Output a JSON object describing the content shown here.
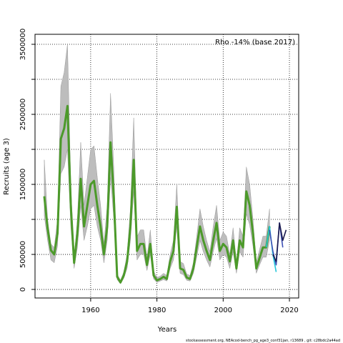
{
  "chart_data": {
    "type": "line",
    "annotation": "Rho -14% (base 2017)",
    "x_label": "Years",
    "y_label": "Recruits (age 3)",
    "footer": "stockassessment.org, NEAcod-bench_pg_age3_conf31jan, r13689 , git: c28bdc2a44ad",
    "xlim": [
      1943.2,
      2022.8
    ],
    "ylim": [
      -122000,
      3643000
    ],
    "xticks": [
      1960,
      1980,
      2000,
      2020
    ],
    "yticks": [
      0,
      500000,
      1500000,
      2500000,
      3500000
    ],
    "minor_yticks": [
      1000000,
      2000000,
      3000000
    ],
    "grid": true,
    "band_color": "#bdbdbd",
    "series": [
      {
        "color": "#4c9a2a",
        "x": [
          1946,
          1947,
          1948,
          1949,
          1950,
          1951,
          1952,
          1953,
          1954,
          1955,
          1956,
          1957,
          1958,
          1959,
          1960,
          1961,
          1962,
          1963,
          1964,
          1965,
          1966,
          1967,
          1968,
          1969,
          1970,
          1971,
          1972,
          1973,
          1974,
          1975,
          1976,
          1977,
          1978,
          1979,
          1980,
          1981,
          1982,
          1983,
          1984,
          1985,
          1986,
          1987,
          1988,
          1989,
          1990,
          1991,
          1992,
          1993,
          1994,
          1995,
          1996,
          1997,
          1998,
          1999,
          2000,
          2001,
          2002,
          2003,
          2004,
          2005,
          2006,
          2007,
          2008,
          2009,
          2010,
          2011,
          2012,
          2013,
          2014
        ],
        "values": [
          1330000,
          870000,
          560000,
          500000,
          800000,
          2150000,
          2300000,
          2620000,
          1200000,
          380000,
          800000,
          1580000,
          900000,
          1200000,
          1500000,
          1550000,
          1200000,
          900000,
          500000,
          900000,
          2100000,
          1300000,
          180000,
          100000,
          200000,
          400000,
          900000,
          1850000,
          550000,
          650000,
          650000,
          350000,
          650000,
          200000,
          130000,
          150000,
          180000,
          150000,
          400000,
          550000,
          1180000,
          300000,
          280000,
          170000,
          150000,
          300000,
          600000,
          900000,
          700000,
          550000,
          420000,
          700000,
          950000,
          550000,
          650000,
          600000,
          400000,
          700000,
          300000,
          700000,
          600000,
          1400000,
          1200000,
          800000,
          300000,
          450000,
          600000,
          600000,
          900000
        ],
        "upper": [
          1850000,
          1000000,
          650000,
          600000,
          1000000,
          2900000,
          3100000,
          3500000,
          1500000,
          450000,
          1000000,
          2100000,
          1200000,
          1600000,
          2000000,
          2050000,
          1600000,
          1200000,
          650000,
          1200000,
          2800000,
          1700000,
          220000,
          130000,
          250000,
          500000,
          1150000,
          2450000,
          750000,
          850000,
          850000,
          450000,
          850000,
          260000,
          170000,
          190000,
          230000,
          200000,
          500000,
          700000,
          1500000,
          400000,
          370000,
          220000,
          200000,
          380000,
          750000,
          1150000,
          900000,
          700000,
          540000,
          900000,
          1200000,
          700000,
          820000,
          760000,
          500000,
          880000,
          380000,
          880000,
          760000,
          1750000,
          1500000,
          1000000,
          380000,
          570000,
          760000,
          760000,
          1150000
        ],
        "lower": [
          1050000,
          700000,
          420000,
          380000,
          620000,
          1650000,
          1750000,
          2000000,
          900000,
          300000,
          600000,
          1200000,
          700000,
          900000,
          1150000,
          1200000,
          900000,
          700000,
          380000,
          700000,
          1600000,
          1000000,
          140000,
          80000,
          160000,
          300000,
          700000,
          1400000,
          420000,
          500000,
          500000,
          270000,
          500000,
          150000,
          100000,
          120000,
          140000,
          120000,
          300000,
          420000,
          900000,
          230000,
          210000,
          130000,
          120000,
          230000,
          460000,
          700000,
          540000,
          420000,
          320000,
          540000,
          730000,
          420000,
          500000,
          460000,
          300000,
          540000,
          230000,
          540000,
          460000,
          1080000,
          920000,
          620000,
          230000,
          350000,
          460000,
          460000,
          700000
        ]
      },
      {
        "color": "#26c6da",
        "x": [
          2013,
          2014,
          2015,
          2016
        ],
        "values": [
          600000,
          900000,
          500000,
          250000
        ]
      },
      {
        "color": "#3f51b5",
        "x": [
          2014,
          2015,
          2016,
          2017,
          2018
        ],
        "values": [
          850000,
          550000,
          350000,
          950000,
          600000
        ]
      },
      {
        "color": "#1a1a4e",
        "x": [
          2015,
          2016,
          2017,
          2018,
          2019
        ],
        "values": [
          500000,
          400000,
          950000,
          700000,
          850000
        ]
      }
    ]
  }
}
